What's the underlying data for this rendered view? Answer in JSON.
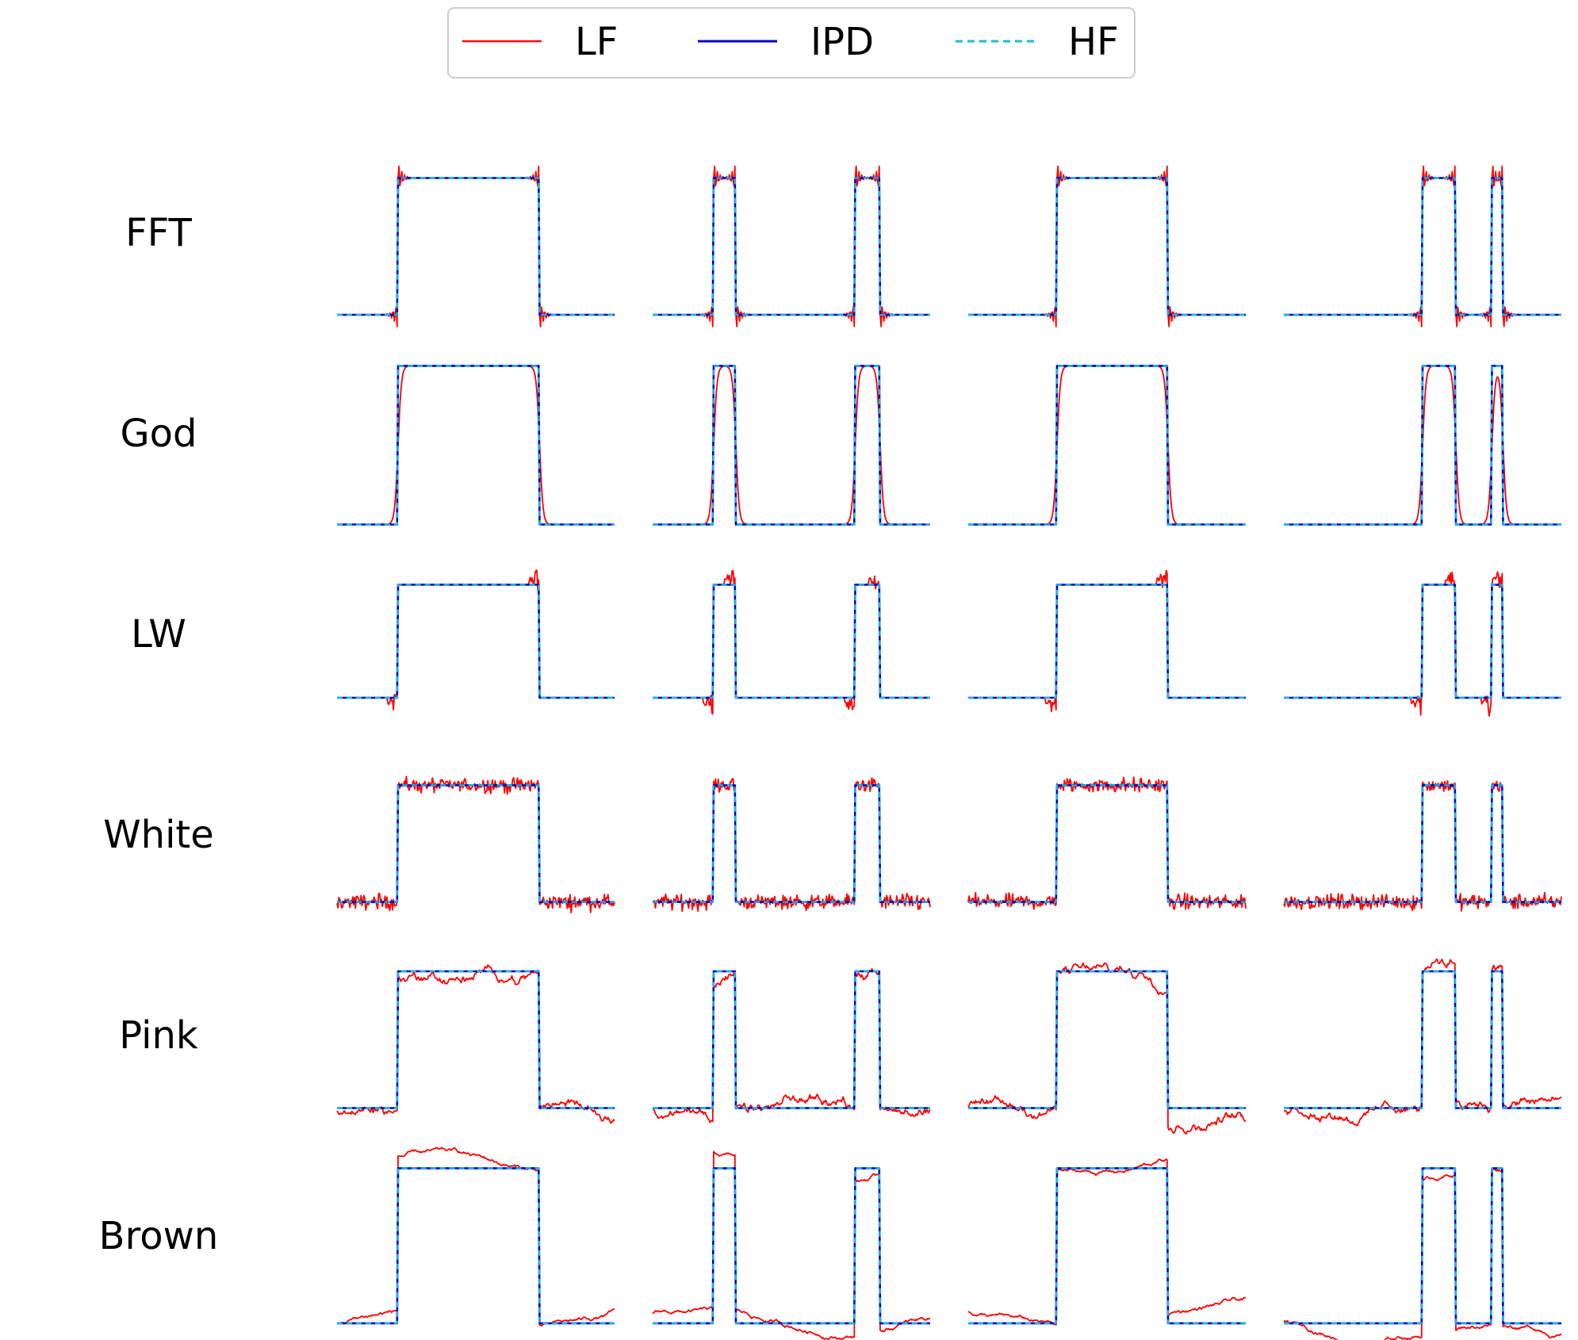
{
  "legend": {
    "items": [
      {
        "label": "LF",
        "color": "#ff0000",
        "dash": "solid"
      },
      {
        "label": "IPD",
        "color": "#0000cc",
        "dash": "solid"
      },
      {
        "label": "HF",
        "color": "#17becf",
        "dash": "dashed"
      }
    ]
  },
  "row_labels": [
    "FFT",
    "God",
    "LW",
    "White",
    "Pink",
    "Brown"
  ],
  "chart_data": {
    "type": "line",
    "layout": "6x4 grid of small multiples, axes hidden",
    "rows": [
      "FFT",
      "God",
      "LW",
      "White",
      "Pink",
      "Brown"
    ],
    "series": [
      "LF",
      "IPD",
      "HF"
    ],
    "x_domain": [
      0,
      1
    ],
    "columns": [
      {
        "name": "col1",
        "pulses": [
          [
            0.22,
            0.73
          ]
        ]
      },
      {
        "name": "col2",
        "pulses": [
          [
            0.22,
            0.3
          ],
          [
            0.73,
            0.82
          ]
        ]
      },
      {
        "name": "col3",
        "pulses": [
          [
            0.32,
            0.72
          ]
        ]
      },
      {
        "name": "col4",
        "pulses": [
          [
            0.5,
            0.62
          ],
          [
            0.75,
            0.79
          ]
        ]
      }
    ],
    "y_base": 0,
    "y_high": 1,
    "lf_artifact_by_row": {
      "FFT": "Gibbs ringing at pulse edges",
      "God": "smoothed edges",
      "LW": "oscillations before rising and falling edges",
      "White": "white noise",
      "Pink": "pink noise drift",
      "Brown": "brown noise drift"
    }
  }
}
